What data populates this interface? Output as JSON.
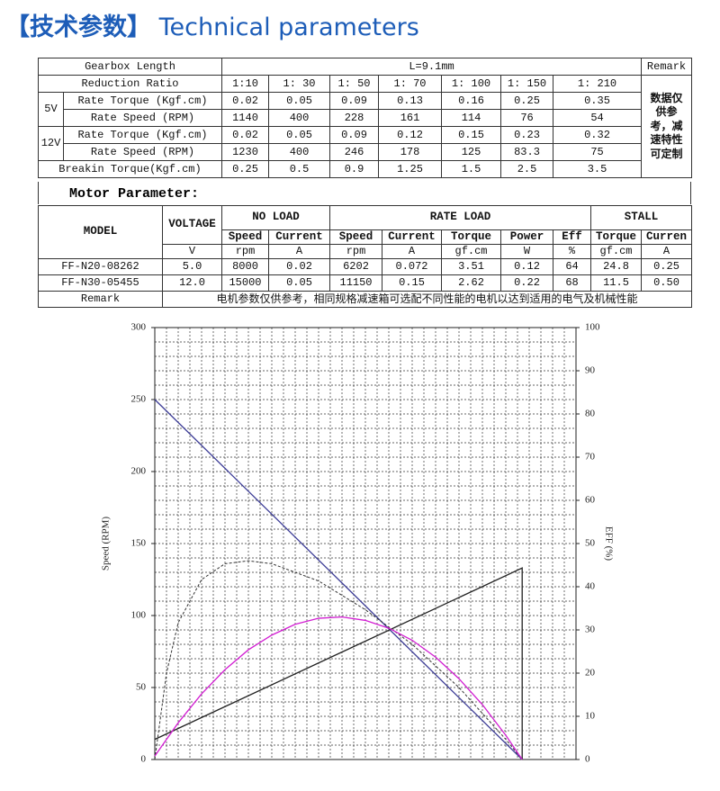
{
  "header": {
    "title_cn": "【技术参数】",
    "title_en": "Technical parameters"
  },
  "gearbox_table": {
    "length_label": "Gearbox Length",
    "length": "L=9.1mm",
    "remark_label": "Remark",
    "ratio_label": "Reduction Ratio",
    "ratios": [
      "1:10",
      "1: 30",
      "1: 50",
      "1: 70",
      "1: 100",
      "1: 150",
      "1: 210"
    ],
    "remark": "数据仅供参考，减速特性可定制",
    "groups": [
      {
        "voltage": "5V",
        "rows": [
          {
            "label": "Rate Torque (Kgf.cm)",
            "values": [
              "0.02",
              "0.05",
              "0.09",
              "0.13",
              "0.16",
              "0.25",
              "0.35"
            ]
          },
          {
            "label": "Rate Speed (RPM)",
            "values": [
              "1140",
              "400",
              "228",
              "161",
              "114",
              "76",
              "54"
            ]
          }
        ]
      },
      {
        "voltage": "12V",
        "rows": [
          {
            "label": "Rate Torque (Kgf.cm)",
            "values": [
              "0.02",
              "0.05",
              "0.09",
              "0.12",
              "0.15",
              "0.23",
              "0.32"
            ]
          },
          {
            "label": "Rate Speed (RPM)",
            "values": [
              "1230",
              "400",
              "246",
              "178",
              "125",
              "83.3",
              "75"
            ]
          }
        ]
      }
    ],
    "breakin": {
      "label": "Breakin Torque(Kgf.cm)",
      "values": [
        "0.25",
        "0.5",
        "0.9",
        "1.25",
        "1.5",
        "2.5",
        "3.5"
      ]
    }
  },
  "motor_table": {
    "title": "Motor Parameter:",
    "model_label": "MODEL",
    "voltage_label": "VOLTAGE",
    "voltage_unit": "V",
    "groups": [
      {
        "name": "NO LOAD",
        "columns": [
          {
            "name": "Speed",
            "unit": "rpm"
          },
          {
            "name": "Current",
            "unit": "A"
          }
        ]
      },
      {
        "name": "RATE LOAD",
        "columns": [
          {
            "name": "Speed",
            "unit": "rpm"
          },
          {
            "name": "Current",
            "unit": "A"
          },
          {
            "name": "Torque",
            "unit": "gf.cm"
          },
          {
            "name": "Power",
            "unit": "W"
          },
          {
            "name": "Eff",
            "unit": "%"
          }
        ]
      },
      {
        "name": "STALL",
        "columns": [
          {
            "name": "Torque",
            "unit": "gf.cm"
          },
          {
            "name": "Curren",
            "unit": "A"
          }
        ]
      }
    ],
    "rows": [
      {
        "model": "FF-N20-08262",
        "voltage": "5.0",
        "values": [
          "8000",
          "0.02",
          "6202",
          "0.072",
          "3.51",
          "0.12",
          "64",
          "24.8",
          "0.25"
        ]
      },
      {
        "model": "FF-N30-05455",
        "voltage": "12.0",
        "values": [
          "15000",
          "0.05",
          "11150",
          "0.15",
          "2.62",
          "0.22",
          "68",
          "11.5",
          "0.50"
        ]
      }
    ],
    "remark_label": "Remark",
    "remark": "电机参数仅供参考，相同规格减速箱可选配不同性能的电机以达到适用的电气及机械性能"
  },
  "chart_data": {
    "type": "line",
    "ylabel": "Speed (RPM)",
    "y2label": "EFF (%)",
    "xlim": [
      0,
      36
    ],
    "xticks": [
      0,
      1,
      2,
      3,
      4,
      5,
      6,
      7,
      8,
      9,
      10,
      11,
      12,
      13,
      14,
      15,
      16,
      17,
      18,
      19,
      20,
      21,
      22,
      23,
      24,
      25,
      26,
      27,
      28,
      29,
      30,
      31,
      32,
      33,
      34,
      35,
      36
    ],
    "ylim": [
      0,
      300
    ],
    "yticks": [
      0,
      50,
      100,
      150,
      200,
      250,
      300
    ],
    "yminorticks": [
      0,
      10,
      20,
      30,
      40,
      50,
      60,
      70,
      80,
      90,
      100,
      110,
      120,
      130,
      140,
      150,
      160,
      170,
      180,
      190,
      200,
      210,
      220,
      230,
      240,
      250,
      260,
      270,
      280,
      290,
      300
    ],
    "y2lim": [
      0,
      100
    ],
    "y2ticks": [
      0,
      10,
      20,
      30,
      40,
      50,
      60,
      70,
      80,
      90,
      100
    ],
    "grid": true,
    "series": [
      {
        "color": "#3c3c96",
        "x": [
          0,
          31.4
        ],
        "values": [
          250,
          0
        ]
      },
      {
        "color": "#222222",
        "x": [
          0,
          31.4,
          31.4
        ],
        "values": [
          14,
          133,
          0
        ]
      },
      {
        "color": "#333333",
        "dashed": true,
        "x": [
          0,
          1,
          2,
          4,
          6,
          8,
          10,
          14,
          18,
          22,
          26,
          30,
          31.4
        ],
        "values": [
          0,
          60,
          95,
          125,
          136,
          138,
          136,
          124,
          104,
          80,
          50,
          14,
          0
        ]
      },
      {
        "color": "#d21ed2",
        "axis": "y2",
        "x": [
          0,
          2,
          4,
          6,
          8,
          10,
          12,
          14,
          16,
          18,
          20,
          22,
          24,
          26,
          28,
          30,
          31.4
        ],
        "values": [
          0.8,
          8.5,
          15.2,
          20.8,
          25.4,
          28.8,
          31.3,
          32.7,
          33.0,
          32.2,
          30.4,
          27.6,
          23.7,
          18.7,
          12.7,
          5.6,
          0
        ]
      }
    ]
  }
}
